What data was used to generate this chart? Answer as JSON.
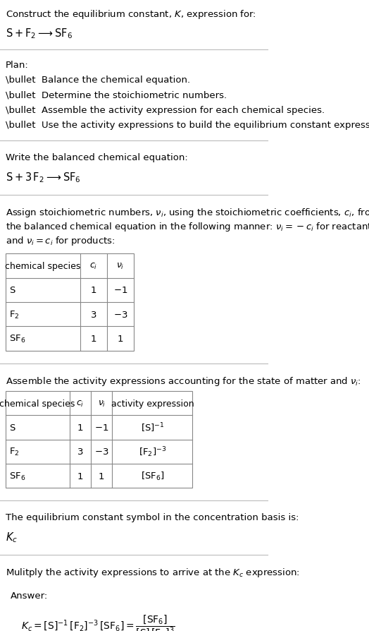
{
  "title_line1": "Construct the equilibrium constant, $K$, expression for:",
  "title_line2": "$\\mathrm{S + F_2 \\longrightarrow SF_6}$",
  "plan_header": "Plan:",
  "plan_items": [
    "\\bullet  Balance the chemical equation.",
    "\\bullet  Determine the stoichiometric numbers.",
    "\\bullet  Assemble the activity expression for each chemical species.",
    "\\bullet  Use the activity expressions to build the equilibrium constant expression."
  ],
  "balanced_header": "Write the balanced chemical equation:",
  "balanced_eq": "$\\mathrm{S + 3\\,F_2 \\longrightarrow SF_6}$",
  "table1_cols": [
    "chemical species",
    "$c_i$",
    "$\\nu_i$"
  ],
  "table1_rows": [
    [
      "S",
      "1",
      "$-1$"
    ],
    [
      "$\\mathrm{F_2}$",
      "3",
      "$-3$"
    ],
    [
      "$\\mathrm{SF_6}$",
      "1",
      "1"
    ]
  ],
  "activity_header": "Assemble the activity expressions accounting for the state of matter and $\\nu_i$:",
  "table2_cols": [
    "chemical species",
    "$c_i$",
    "$\\nu_i$",
    "activity expression"
  ],
  "table2_rows": [
    [
      "S",
      "1",
      "$-1$",
      "$[\\mathrm{S}]^{-1}$"
    ],
    [
      "$\\mathrm{F_2}$",
      "3",
      "$-3$",
      "$[\\mathrm{F_2}]^{-3}$"
    ],
    [
      "$\\mathrm{SF_6}$",
      "1",
      "1",
      "$[\\mathrm{SF_6}]$"
    ]
  ],
  "kc_header": "The equilibrium constant symbol in the concentration basis is:",
  "kc_symbol": "$K_c$",
  "multiply_header": "Mulitply the activity expressions to arrive at the $K_c$ expression:",
  "answer_box_color": "#e8f4f8",
  "answer_box_border": "#a0c8d8",
  "bg_color": "#ffffff",
  "text_color": "#000000",
  "table_border_color": "#888888",
  "font_size": 9.5
}
